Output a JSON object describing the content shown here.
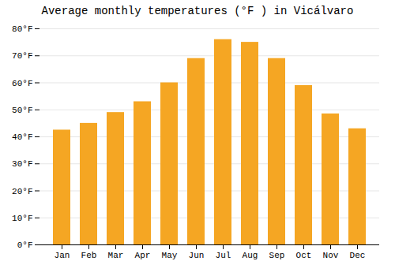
{
  "chart_data": {
    "type": "bar",
    "title": "Average monthly temperatures (°F ) in Vicálvaro",
    "categories": [
      "Jan",
      "Feb",
      "Mar",
      "Apr",
      "May",
      "Jun",
      "Jul",
      "Aug",
      "Sep",
      "Oct",
      "Nov",
      "Dec"
    ],
    "values": [
      42.5,
      45,
      49,
      53,
      60,
      69,
      76,
      75,
      69,
      59,
      48.5,
      43
    ],
    "color": "#F5A623",
    "ylim": [
      0,
      80
    ],
    "yticks": [
      {
        "value": 0,
        "label": "0°F"
      },
      {
        "value": 10,
        "label": "10°F"
      },
      {
        "value": 20,
        "label": "20°F"
      },
      {
        "value": 30,
        "label": "30°F"
      },
      {
        "value": 40,
        "label": "40°F"
      },
      {
        "value": 50,
        "label": "50°F"
      },
      {
        "value": 60,
        "label": "60°F"
      },
      {
        "value": 70,
        "label": "70°F"
      },
      {
        "value": 80,
        "label": "80°F"
      }
    ],
    "grid": true
  }
}
